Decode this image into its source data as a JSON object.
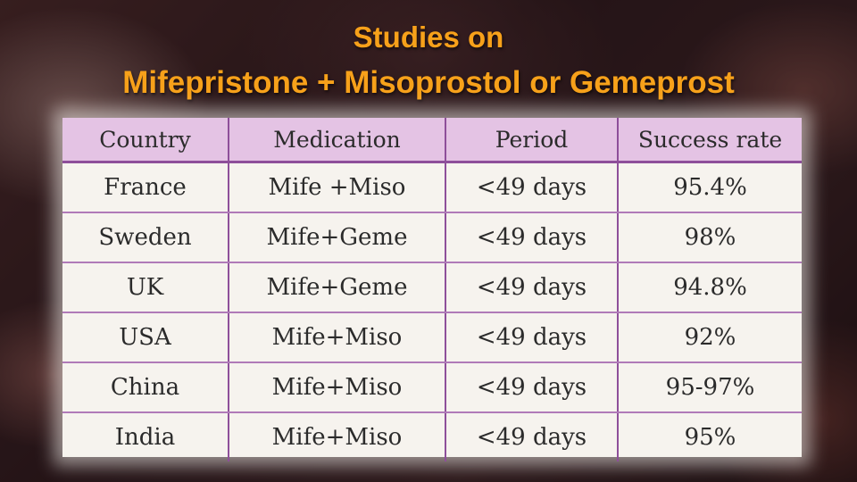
{
  "slide": {
    "title_line1": "Studies on",
    "title_line2": "Mifepristone + Misoprostol or Gemeprost",
    "title_color": "#f7a11a"
  },
  "table": {
    "headers": [
      "Country",
      "Medication",
      "Period",
      "Success rate"
    ],
    "header_bg": "#e4c3e4",
    "border_color": "#8e4f9a",
    "rows": [
      {
        "country": "France",
        "medication": "Mife +Miso",
        "period": "<49 days",
        "success_rate": "95.4%"
      },
      {
        "country": "Sweden",
        "medication": "Mife+Geme",
        "period": "<49 days",
        "success_rate": "98%"
      },
      {
        "country": "UK",
        "medication": "Mife+Geme",
        "period": "<49 days",
        "success_rate": "94.8%"
      },
      {
        "country": "USA",
        "medication": "Mife+Miso",
        "period": "<49 days",
        "success_rate": "92%"
      },
      {
        "country": "China",
        "medication": "Mife+Miso",
        "period": "<49 days",
        "success_rate": "95-97%"
      },
      {
        "country": "India",
        "medication": "Mife+Miso",
        "period": "<49 days",
        "success_rate": "95%"
      }
    ]
  }
}
